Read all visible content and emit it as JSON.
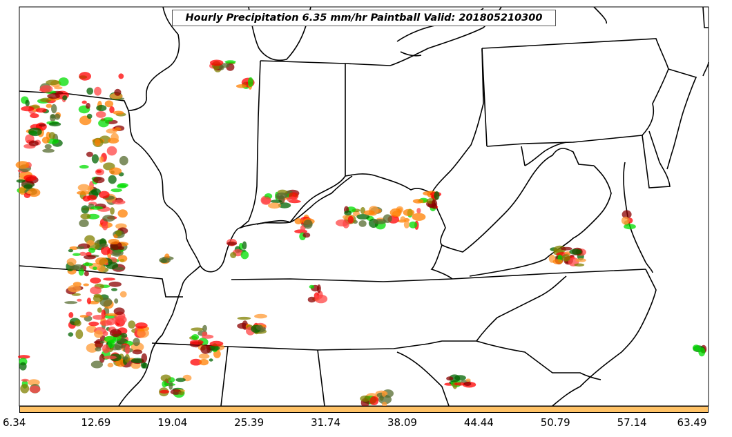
{
  "title": "Hourly Precipitation 6.35 mm/hr Paintball Valid: 201805210300",
  "colorbar": {
    "fill_color": "#ffc266",
    "ticks": [
      "6.34",
      "12.69",
      "19.04",
      "25.39",
      "31.74",
      "38.09",
      "44.44",
      "50.79",
      "57.14",
      "63.49"
    ]
  },
  "member_colors": [
    "#ff0000",
    "#ff7f00",
    "#00dd00",
    "#8b0000",
    "#808000",
    "#006400",
    "#ff4444",
    "#ff9933",
    "#556b2f"
  ],
  "map": {
    "region": "Central and Eastern United States",
    "features": [
      "state-borders",
      "coastline",
      "great-lakes"
    ]
  }
}
